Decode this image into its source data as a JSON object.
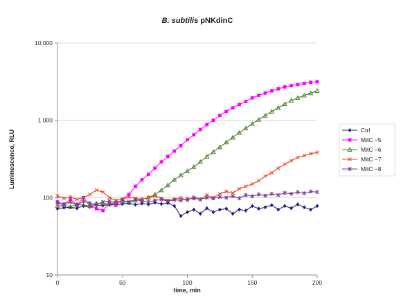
{
  "chart_data": {
    "type": "line",
    "title_italic": "B. subtilis",
    "title_rest": " pNKdinC",
    "xlabel": "time, min",
    "ylabel": "Luminescence, RLU",
    "xlim": [
      0,
      200
    ],
    "ylim": [
      10,
      10000
    ],
    "yscale": "log",
    "xticks": [
      "0",
      "50",
      "100",
      "150",
      "200"
    ],
    "xtick_values": [
      0,
      50,
      100,
      150,
      200
    ],
    "yticks": [
      "10",
      "100",
      "1 000",
      "10,000"
    ],
    "ytick_values": [
      10,
      100,
      1000,
      10000
    ],
    "grid": "horizontal",
    "legend_position": "right",
    "series": [
      {
        "name": "Ctrl",
        "color": "#1f1f7a",
        "marker": "diamond",
        "x": [
          0,
          5,
          10,
          15,
          20,
          25,
          30,
          35,
          40,
          45,
          50,
          55,
          60,
          65,
          70,
          75,
          80,
          85,
          90,
          95,
          100,
          105,
          110,
          115,
          120,
          125,
          130,
          135,
          140,
          145,
          150,
          155,
          160,
          165,
          170,
          175,
          180,
          185,
          190,
          195,
          200
        ],
        "y": [
          72,
          74,
          75,
          73,
          78,
          76,
          80,
          79,
          82,
          80,
          83,
          85,
          81,
          84,
          82,
          86,
          83,
          85,
          78,
          58,
          65,
          70,
          62,
          73,
          65,
          70,
          72,
          62,
          70,
          68,
          78,
          72,
          75,
          80,
          70,
          78,
          73,
          82,
          75,
          70,
          78
        ]
      },
      {
        "name": "MitC −5",
        "color": "#ff00ff",
        "marker": "square",
        "x": [
          0,
          5,
          10,
          15,
          20,
          25,
          30,
          35,
          40,
          45,
          50,
          55,
          60,
          65,
          70,
          75,
          80,
          85,
          90,
          95,
          100,
          105,
          110,
          115,
          120,
          125,
          130,
          135,
          140,
          145,
          150,
          155,
          160,
          165,
          170,
          175,
          180,
          185,
          190,
          195,
          200
        ],
        "y": [
          88,
          82,
          95,
          80,
          100,
          78,
          72,
          68,
          85,
          80,
          95,
          110,
          140,
          170,
          200,
          240,
          290,
          340,
          400,
          470,
          560,
          650,
          760,
          880,
          1000,
          1150,
          1300,
          1450,
          1600,
          1750,
          1950,
          2100,
          2250,
          2400,
          2550,
          2700,
          2800,
          2900,
          3000,
          3100,
          3150
        ]
      },
      {
        "name": "MitC −6",
        "color": "#4a7a2a",
        "marker": "triangle",
        "x": [
          0,
          5,
          10,
          15,
          20,
          25,
          30,
          35,
          40,
          45,
          50,
          55,
          60,
          65,
          70,
          75,
          80,
          85,
          90,
          95,
          100,
          105,
          110,
          115,
          120,
          125,
          130,
          135,
          140,
          145,
          150,
          155,
          160,
          165,
          170,
          175,
          180,
          185,
          190,
          195,
          200
        ],
        "y": [
          78,
          80,
          76,
          82,
          80,
          78,
          84,
          85,
          82,
          88,
          90,
          86,
          92,
          95,
          100,
          110,
          125,
          145,
          170,
          195,
          220,
          250,
          290,
          340,
          390,
          450,
          520,
          600,
          690,
          790,
          900,
          1020,
          1150,
          1300,
          1450,
          1620,
          1800,
          1950,
          2100,
          2250,
          2400
        ]
      },
      {
        "name": "MitC −7",
        "color": "#e8401c",
        "marker": "x",
        "x": [
          0,
          5,
          10,
          15,
          20,
          25,
          30,
          35,
          40,
          45,
          50,
          55,
          60,
          65,
          70,
          75,
          80,
          85,
          90,
          95,
          100,
          105,
          110,
          115,
          120,
          125,
          130,
          135,
          140,
          145,
          150,
          155,
          160,
          165,
          170,
          175,
          180,
          185,
          190,
          195,
          200
        ],
        "y": [
          105,
          98,
          102,
          95,
          100,
          110,
          125,
          118,
          100,
          92,
          96,
          102,
          98,
          95,
          100,
          105,
          98,
          92,
          95,
          100,
          92,
          102,
          95,
          108,
          100,
          112,
          120,
          115,
          130,
          140,
          150,
          165,
          190,
          210,
          240,
          270,
          300,
          330,
          350,
          370,
          385
        ]
      },
      {
        "name": "MitC −8",
        "color": "#7a3a9a",
        "marker": "star",
        "x": [
          0,
          5,
          10,
          15,
          20,
          25,
          30,
          35,
          40,
          45,
          50,
          55,
          60,
          65,
          70,
          75,
          80,
          85,
          90,
          95,
          100,
          105,
          110,
          115,
          120,
          125,
          130,
          135,
          140,
          145,
          150,
          155,
          160,
          165,
          170,
          175,
          180,
          185,
          190,
          195,
          200
        ],
        "y": [
          85,
          82,
          88,
          80,
          90,
          85,
          82,
          88,
          90,
          86,
          92,
          88,
          95,
          90,
          88,
          92,
          95,
          90,
          94,
          92,
          96,
          98,
          95,
          100,
          98,
          102,
          100,
          105,
          98,
          108,
          104,
          110,
          106,
          112,
          108,
          115,
          112,
          118,
          114,
          120,
          118
        ]
      }
    ]
  }
}
